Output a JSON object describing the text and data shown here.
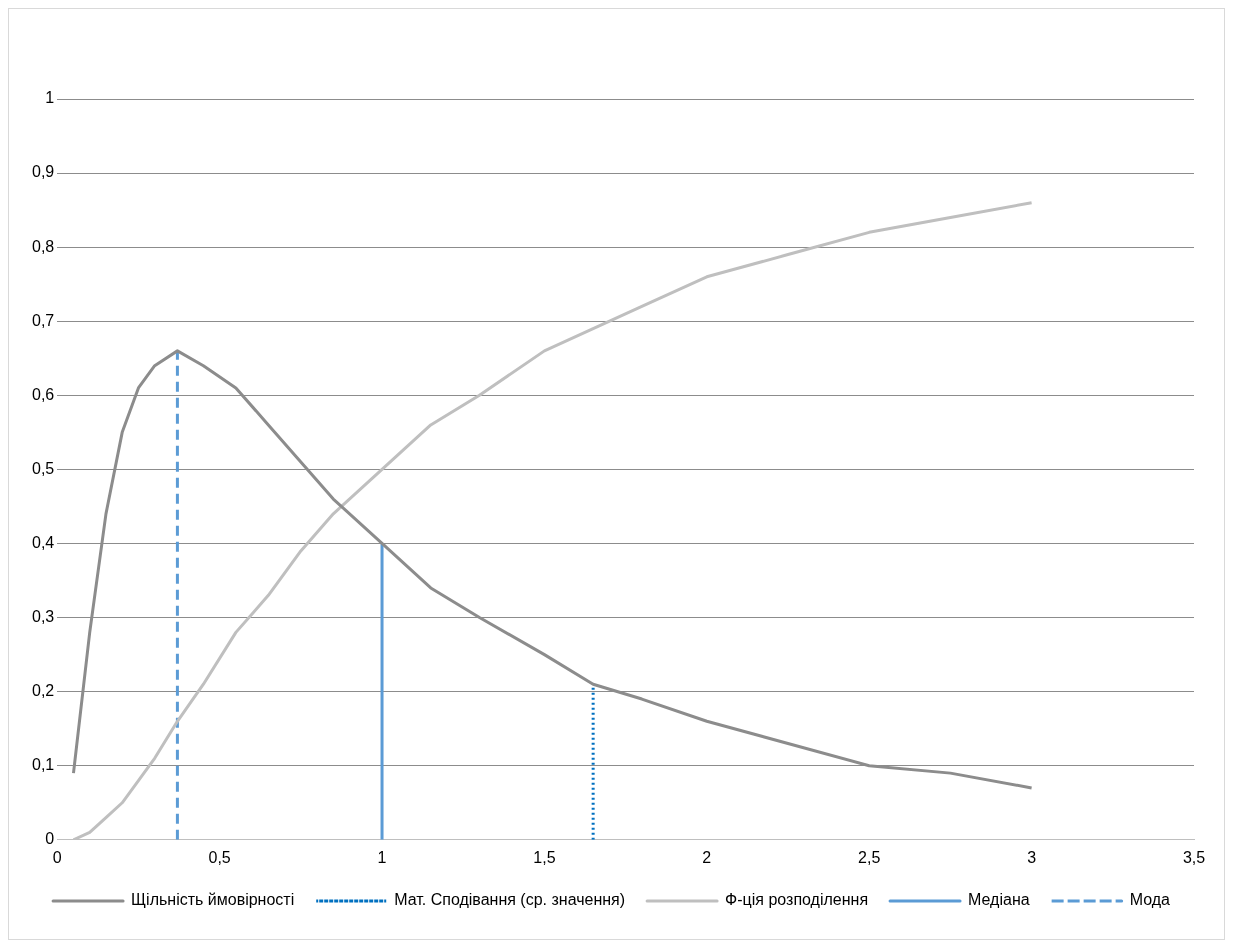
{
  "chart_data": {
    "type": "line",
    "xlim": [
      0,
      3.5
    ],
    "xticks": [
      0,
      {
        "value": 0.5,
        "label": "0,5"
      },
      1,
      {
        "value": 1.5,
        "label": "1,5"
      },
      2,
      {
        "value": 2.5,
        "label": "2,5"
      },
      3,
      {
        "value": 3.5,
        "label": "3,5"
      }
    ],
    "ylim": [
      0,
      1
    ],
    "yticks": [
      0,
      {
        "value": 0.1,
        "label": "0,1"
      },
      {
        "value": 0.2,
        "label": "0,2"
      },
      {
        "value": 0.3,
        "label": "0,3"
      },
      {
        "value": 0.4,
        "label": "0,4"
      },
      {
        "value": 0.5,
        "label": "0,5"
      },
      {
        "value": 0.6,
        "label": "0,6"
      },
      {
        "value": 0.7,
        "label": "0,7"
      },
      {
        "value": 0.8,
        "label": "0,8"
      },
      {
        "value": 0.9,
        "label": "0,9"
      },
      1
    ],
    "grid": "y",
    "legend": "bottom",
    "marker": "none",
    "series": [
      {
        "name": "Щільність ймовірності",
        "color": "#8c8c8c",
        "line_style": "solid",
        "x": [
          0.05,
          0.1,
          0.15,
          0.2,
          0.25,
          0.3,
          0.37,
          0.45,
          0.55,
          0.65,
          0.75,
          0.85,
          1,
          1.15,
          1.3,
          1.5,
          1.65,
          1.8,
          2,
          2.25,
          2.5,
          2.75,
          3
        ],
        "values": [
          0.09,
          0.28,
          0.44,
          0.55,
          0.61,
          0.64,
          0.66,
          0.64,
          0.61,
          0.56,
          0.51,
          0.46,
          0.4,
          0.34,
          0.3,
          0.25,
          0.21,
          0.19,
          0.16,
          0.13,
          0.1,
          0.09,
          0.07
        ]
      },
      {
        "name": "Мат. Сподівання (ср. значення)",
        "color": "#0070c0",
        "line_style": "dotted",
        "x": [
          1.65,
          1.65
        ],
        "values": [
          0,
          0.21
        ]
      },
      {
        "name": "Ф-ція розподілення",
        "color": "#bfbfbf",
        "line_style": "solid",
        "x": [
          0.05,
          0.1,
          0.15,
          0.2,
          0.25,
          0.3,
          0.37,
          0.45,
          0.55,
          0.65,
          0.75,
          0.85,
          1,
          1.15,
          1.3,
          1.5,
          1.65,
          1.8,
          2,
          2.25,
          2.5,
          2.75,
          3
        ],
        "values": [
          0,
          0.01,
          0.03,
          0.05,
          0.08,
          0.11,
          0.16,
          0.21,
          0.28,
          0.33,
          0.39,
          0.44,
          0.5,
          0.56,
          0.6,
          0.66,
          0.69,
          0.72,
          0.76,
          0.79,
          0.82,
          0.84,
          0.86
        ]
      },
      {
        "name": "Медіана",
        "color": "#5b9bd5",
        "line_style": "solid",
        "x": [
          1,
          1
        ],
        "values": [
          0,
          0.4
        ]
      },
      {
        "name": "Мода",
        "color": "#5b9bd5",
        "line_style": "dashed",
        "x": [
          0.37,
          0.37
        ],
        "values": [
          0,
          0.66
        ]
      }
    ]
  }
}
